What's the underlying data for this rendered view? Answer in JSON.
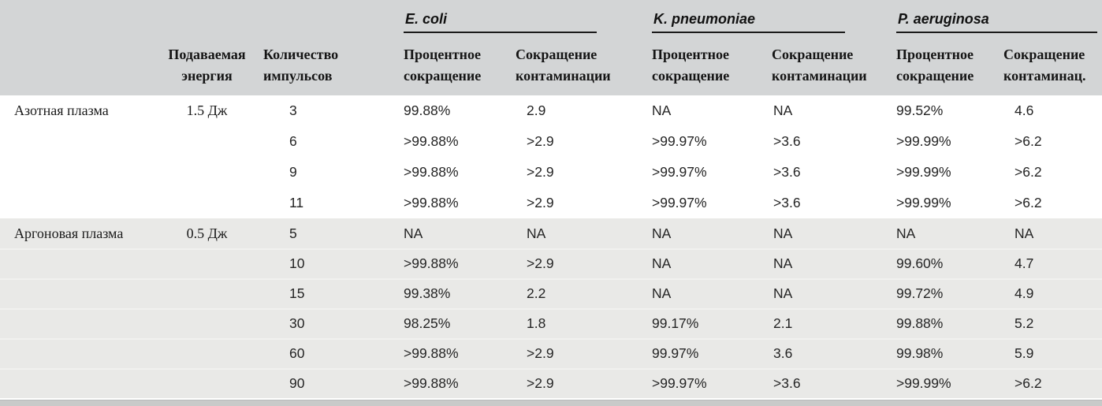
{
  "table": {
    "groups": [
      {
        "name": "E. coli"
      },
      {
        "name": "K. pneumoniae"
      },
      {
        "name": "P. aeruginosa"
      }
    ],
    "headers": {
      "energy_l1": "Подаваемая",
      "energy_l2": "энергия",
      "pulses_l1": "Количество",
      "pulses_l2": "импульсов"
    },
    "sub_headers": [
      {
        "l1": "Процентное",
        "l2": "сокращение"
      },
      {
        "l1": "Сокращение",
        "l2": "контаминации"
      },
      {
        "l1": "Процентное",
        "l2": "сокращение"
      },
      {
        "l1": "Сокращение",
        "l2": "контаминации"
      },
      {
        "l1": "Процентное",
        "l2": "сокращение"
      },
      {
        "l1": "Сокращение",
        "l2": "контаминац."
      }
    ],
    "sections": [
      {
        "label": "Азотная плазма",
        "energy": "1.5 Дж",
        "rows": [
          {
            "pulses": "3",
            "values": [
              "99.88%",
              "2.9",
              "NA",
              "NA",
              "99.52%",
              "4.6"
            ]
          },
          {
            "pulses": "6",
            "values": [
              ">99.88%",
              ">2.9",
              ">99.97%",
              ">3.6",
              ">99.99%",
              ">6.2"
            ]
          },
          {
            "pulses": "9",
            "values": [
              ">99.88%",
              ">2.9",
              ">99.97%",
              ">3.6",
              ">99.99%",
              ">6.2"
            ]
          },
          {
            "pulses": "11",
            "values": [
              ">99.88%",
              ">2.9",
              ">99.97%",
              ">3.6",
              ">99.99%",
              ">6.2"
            ]
          }
        ]
      },
      {
        "label": "Аргоновая плазма",
        "energy": "0.5 Дж",
        "rows": [
          {
            "pulses": "5",
            "values": [
              "NA",
              "NA",
              "NA",
              "NA",
              "NA",
              "NA"
            ]
          },
          {
            "pulses": "10",
            "values": [
              ">99.88%",
              ">2.9",
              "NA",
              "NA",
              "99.60%",
              "4.7"
            ]
          },
          {
            "pulses": "15",
            "values": [
              "99.38%",
              "2.2",
              "NA",
              "NA",
              "99.72%",
              "4.9"
            ]
          },
          {
            "pulses": "30",
            "values": [
              "98.25%",
              "1.8",
              "99.17%",
              "2.1",
              "99.88%",
              "5.2"
            ]
          },
          {
            "pulses": "60",
            "values": [
              ">99.88%",
              ">2.9",
              "99.97%",
              "3.6",
              "99.98%",
              "5.9"
            ]
          },
          {
            "pulses": "90",
            "values": [
              ">99.88%",
              ">2.9",
              ">99.97%",
              ">3.6",
              ">99.99%",
              ">6.2"
            ]
          }
        ]
      }
    ],
    "colors": {
      "header_bg": "#d3d5d6",
      "section_alt_bg": "#e9e9e7",
      "row_divider": "#f1f1ef",
      "bottom_bar": "#c9cac9",
      "rule": "#1a1a1a"
    }
  }
}
